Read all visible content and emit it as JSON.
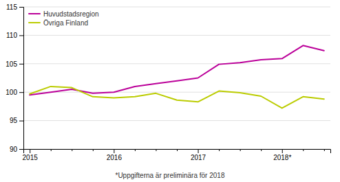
{
  "chart_data": {
    "type": "line",
    "categories": [
      "2015",
      null,
      null,
      null,
      "2016",
      null,
      null,
      null,
      "2017",
      null,
      null,
      null,
      "2018*",
      null,
      null
    ],
    "series": [
      {
        "name": "Huvudstadsregion",
        "color": "#bb0099",
        "values": [
          99.5,
          100.0,
          100.5,
          99.8,
          100.0,
          101.0,
          101.5,
          102.0,
          102.5,
          104.9,
          105.2,
          105.7,
          105.9,
          108.2,
          107.3
        ]
      },
      {
        "name": "Övriga Finland",
        "color": "#bbcc00",
        "values": [
          99.7,
          101.0,
          100.8,
          99.2,
          99.0,
          99.2,
          99.8,
          98.6,
          98.3,
          100.2,
          99.9,
          99.3,
          97.2,
          99.2,
          98.8
        ]
      }
    ],
    "ylim": [
      90,
      115
    ],
    "yticks": [
      90,
      95,
      100,
      105,
      110,
      115
    ],
    "grid": true,
    "legend": "upper left",
    "annotations": [
      "*Uppgifterna är preliminära för 2018"
    ]
  }
}
